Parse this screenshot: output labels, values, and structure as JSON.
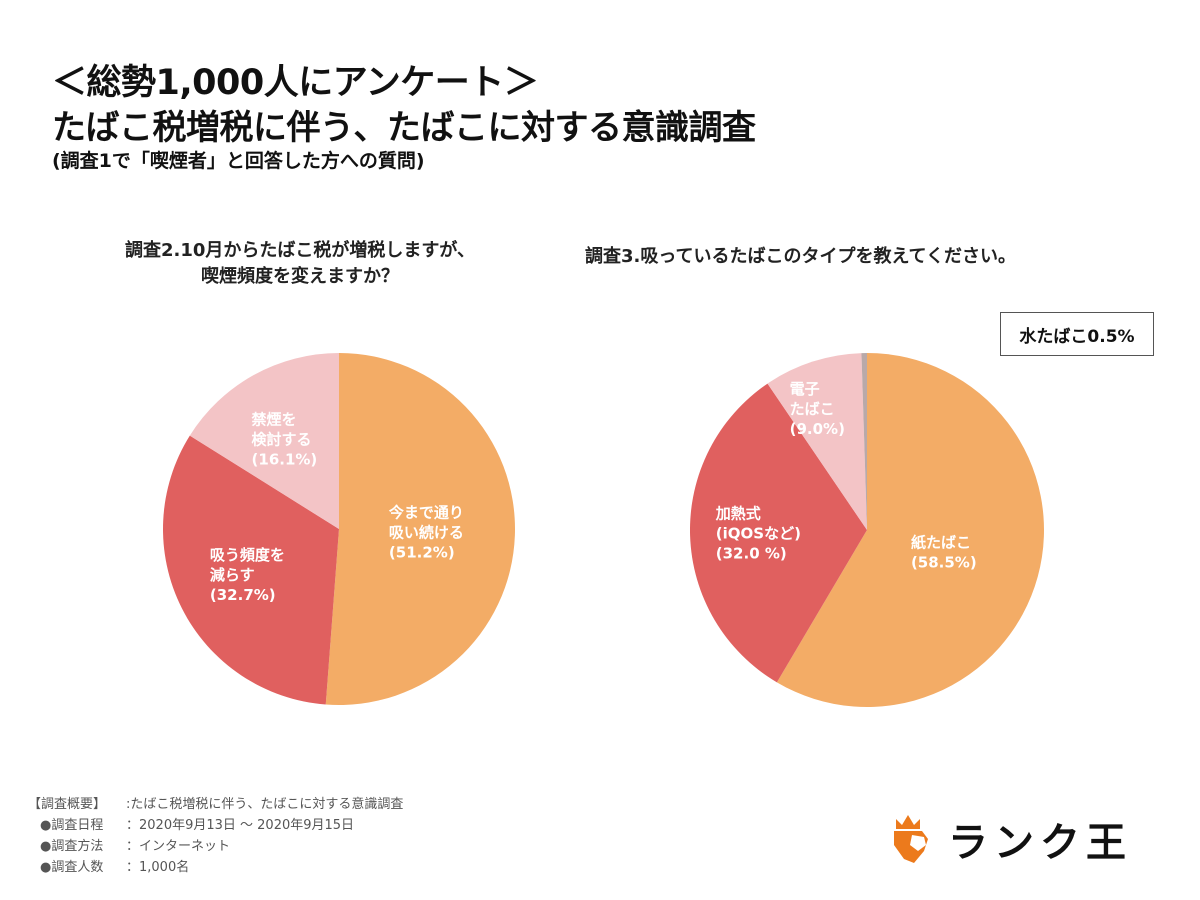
{
  "header": {
    "title_line1": "＜総勢1,000人にアンケート＞",
    "title_line2": "たばこ税増税に伴う、たばこに対する意識調査",
    "subtitle": "(調査1で「喫煙者」と回答した方への質問)"
  },
  "chart_data": [
    {
      "type": "pie",
      "title_lines": [
        "調査2.10月からたばこ税が増税しますが、",
        "喫煙頻度を変えますか？"
      ],
      "start": "12 o'clock, clockwise",
      "slices": [
        {
          "label_lines": [
            "今まで通り",
            "吸い続ける",
            "(51.2%)"
          ],
          "value": 51.2,
          "color": "#F3AC66"
        },
        {
          "label_lines": [
            "吸う頻度を",
            "減らす",
            "(32.7%)"
          ],
          "value": 32.7,
          "color": "#E0605F"
        },
        {
          "label_lines": [
            "禁煙を",
            "検討する",
            "(16.1%)"
          ],
          "value": 16.1,
          "color": "#F3C4C6"
        }
      ]
    },
    {
      "type": "pie",
      "title_lines": [
        "調査3.吸っているたばこのタイプを教えてください。"
      ],
      "start": "12 o'clock, clockwise",
      "slices": [
        {
          "label_lines": [
            "紙たばこ",
            "(58.5%)"
          ],
          "value": 58.5,
          "color": "#F3AC66"
        },
        {
          "label_lines": [
            "加熱式",
            "(iQOSなど)",
            "(32.0 %)"
          ],
          "value": 32.0,
          "color": "#E0605F"
        },
        {
          "label_lines": [
            "電子",
            "たばこ",
            "(9.0%)"
          ],
          "value": 9.0,
          "color": "#F3C4C6"
        },
        {
          "label_lines": [],
          "value": 0.5,
          "color": "#B9A9A9"
        }
      ],
      "annotation": "水たばこ0.5%"
    }
  ],
  "footer": {
    "summary_label": "【調査概要】",
    "summary_value": ":たばこ税増税に伴う、たばこに対する意識調査",
    "rows": [
      {
        "label": "●調査日程",
        "value": "：2020年9月13日 ～ 2020年9月15日"
      },
      {
        "label": "●調査方法",
        "value": "：インターネット"
      },
      {
        "label": "●調査人数",
        "value": "：1,000名"
      }
    ]
  },
  "logo": {
    "text": "ランク王",
    "color": "#EC7A1C"
  }
}
